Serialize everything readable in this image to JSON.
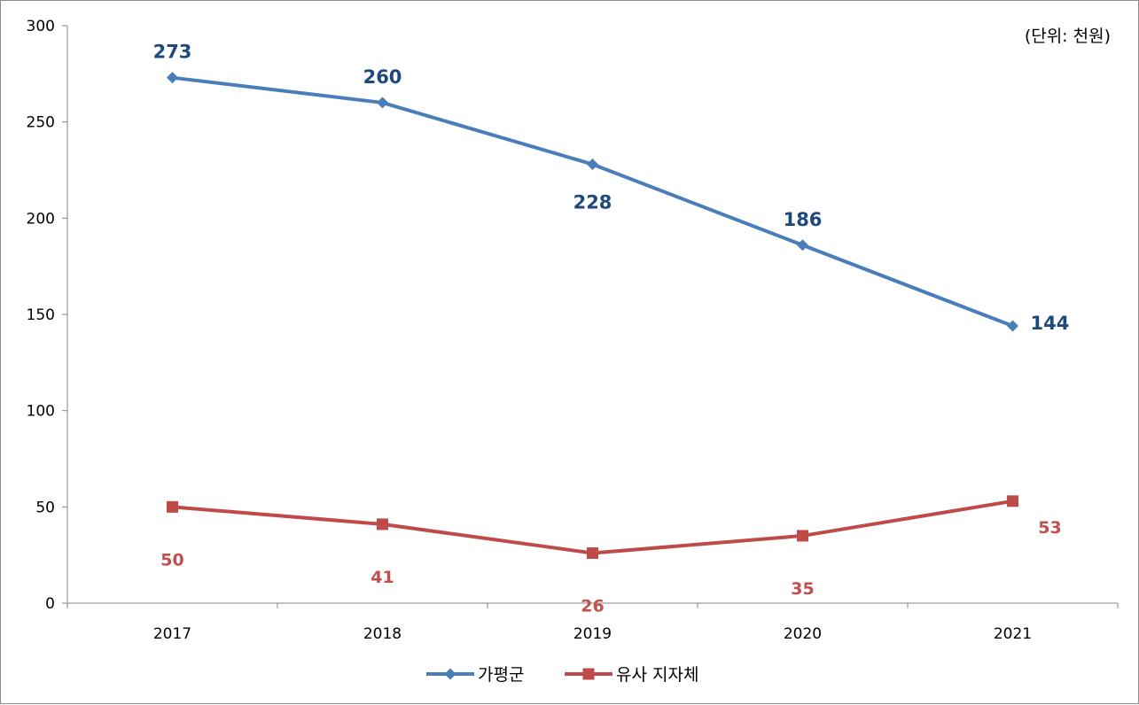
{
  "chart_data": {
    "type": "line",
    "unit_note": "(단위: 천원)",
    "categories": [
      "2017",
      "2018",
      "2019",
      "2020",
      "2021"
    ],
    "ylim": [
      0,
      300
    ],
    "yticks": [
      "0",
      "50",
      "100",
      "150",
      "200",
      "250",
      "300"
    ],
    "grid": false,
    "legend_position": "bottom",
    "series": [
      {
        "name": "가평군",
        "values": [
          273,
          260,
          228,
          186,
          144
        ],
        "color": "#4a7ebb",
        "label_color": "#1f497d",
        "marker": "diamond"
      },
      {
        "name": "유사 지자체",
        "values": [
          50,
          41,
          26,
          35,
          53
        ],
        "color": "#be4b48",
        "label_color": "#c0504d",
        "marker": "square"
      }
    ]
  }
}
